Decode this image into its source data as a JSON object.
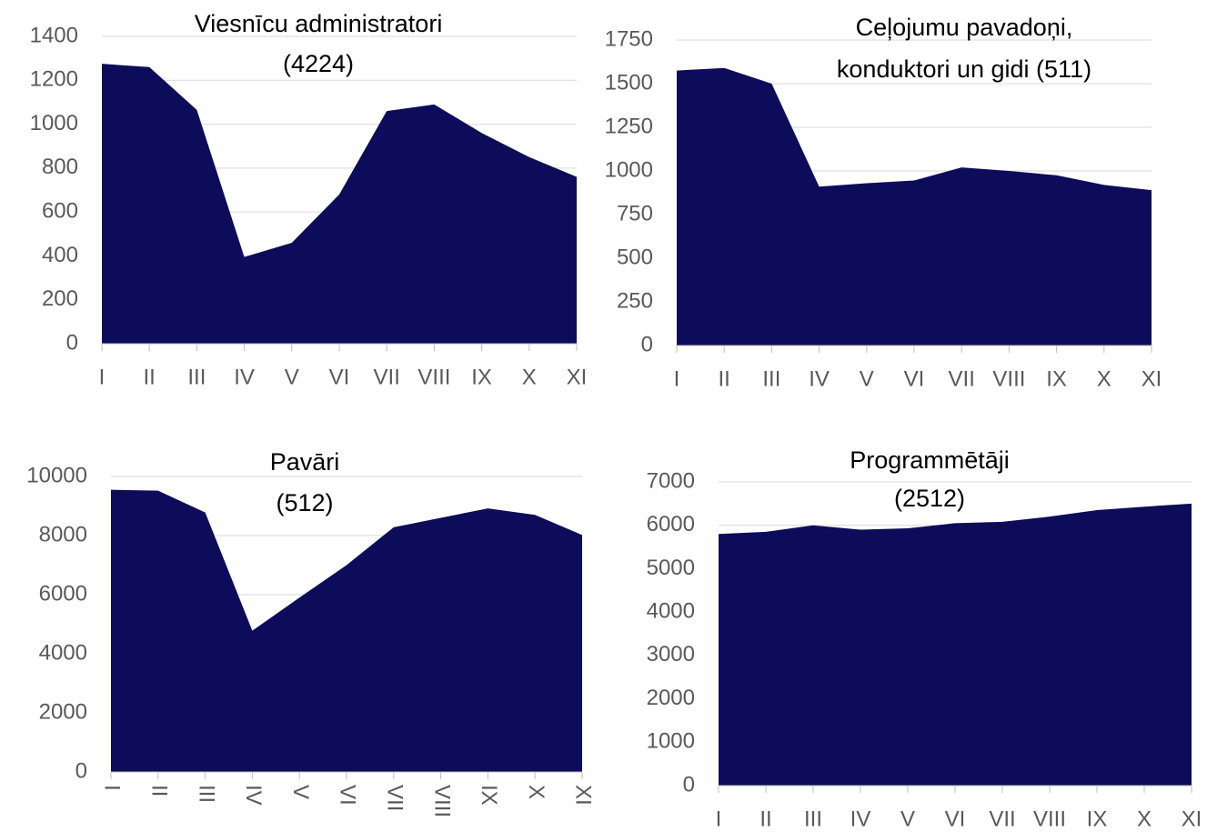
{
  "chart_data": [
    {
      "type": "area",
      "title": [
        "Viesnīcu administratori",
        "(4224)"
      ],
      "color": "#0c0c5a",
      "grid": true,
      "categories": [
        "I",
        "II",
        "III",
        "IV",
        "V",
        "VI",
        "VII",
        "VIII",
        "IX",
        "X",
        "XI"
      ],
      "values": [
        1275,
        1260,
        1065,
        395,
        460,
        680,
        1060,
        1090,
        960,
        850,
        760
      ],
      "ylim": [
        0,
        1400
      ],
      "yticks": [
        0,
        200,
        400,
        600,
        800,
        1000,
        1200,
        1400
      ]
    },
    {
      "type": "area",
      "title": [
        "Ceļojumu pavadoņi,",
        "konduktori un gidi (511)"
      ],
      "color": "#0c0c5a",
      "grid": true,
      "categories": [
        "I",
        "II",
        "III",
        "IV",
        "V",
        "VI",
        "VII",
        "VIII",
        "IX",
        "X",
        "XI"
      ],
      "values": [
        1575,
        1590,
        1500,
        910,
        930,
        945,
        1020,
        1000,
        975,
        920,
        890
      ],
      "ylim": [
        0,
        1750
      ],
      "yticks": [
        0,
        250,
        500,
        750,
        1000,
        1250,
        1500,
        1750
      ]
    },
    {
      "type": "area",
      "title": [
        "Pavāri",
        "(512)"
      ],
      "color": "#0c0c5a",
      "grid": true,
      "categories": [
        "I",
        "II",
        "III",
        "IV",
        "V",
        "VI",
        "VII",
        "VIII",
        "IX",
        "X",
        "XI"
      ],
      "values": [
        9550,
        9520,
        8780,
        4780,
        5900,
        7000,
        8280,
        8600,
        8920,
        8700,
        8020
      ],
      "ylim": [
        0,
        10000
      ],
      "yticks": [
        0,
        2000,
        4000,
        6000,
        8000,
        10000
      ]
    },
    {
      "type": "area",
      "title": [
        "Programmētāji",
        "(2512)"
      ],
      "color": "#0c0c5a",
      "grid": true,
      "categories": [
        "I",
        "II",
        "III",
        "IV",
        "V",
        "VI",
        "VII",
        "VIII",
        "IX",
        "X",
        "XI"
      ],
      "values": [
        5800,
        5850,
        6000,
        5900,
        5930,
        6050,
        6080,
        6200,
        6350,
        6430,
        6500
      ],
      "ylim": [
        0,
        7000
      ],
      "yticks": [
        0,
        1000,
        2000,
        3000,
        4000,
        5000,
        6000,
        7000
      ]
    }
  ]
}
